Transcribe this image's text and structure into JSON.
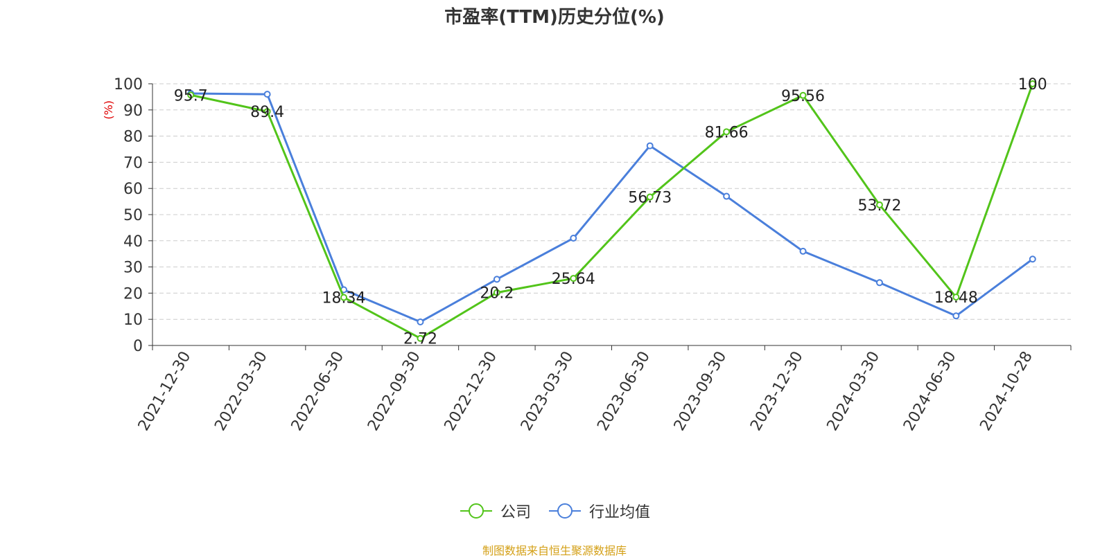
{
  "chart_data": {
    "type": "line",
    "title": "市盈率(TTM)历史分位(%)",
    "ylabel": "(%)",
    "ylim": [
      0,
      100
    ],
    "yticks": [
      0,
      10,
      20,
      30,
      40,
      50,
      60,
      70,
      80,
      90,
      100
    ],
    "grid": true,
    "legend_position": "bottom",
    "categories": [
      "2021-12-30",
      "2022-03-30",
      "2022-06-30",
      "2022-09-30",
      "2022-12-30",
      "2023-03-30",
      "2023-06-30",
      "2023-09-30",
      "2023-12-30",
      "2024-03-30",
      "2024-06-30",
      "2024-10-28"
    ],
    "series": [
      {
        "name": "公司",
        "color": "#52c41a",
        "show_labels": true,
        "values": [
          95.7,
          89.4,
          18.34,
          2.72,
          20.2,
          25.64,
          56.73,
          81.66,
          95.56,
          53.72,
          18.48,
          100
        ]
      },
      {
        "name": "行业均值",
        "color": "#4a7fdb",
        "show_labels": false,
        "values": [
          96.3,
          96.0,
          21.3,
          9.0,
          25.3,
          41.0,
          76.3,
          57.0,
          36.0,
          24.0,
          11.3,
          33.0
        ]
      }
    ]
  },
  "footer": "制图数据来自恒生聚源数据库"
}
